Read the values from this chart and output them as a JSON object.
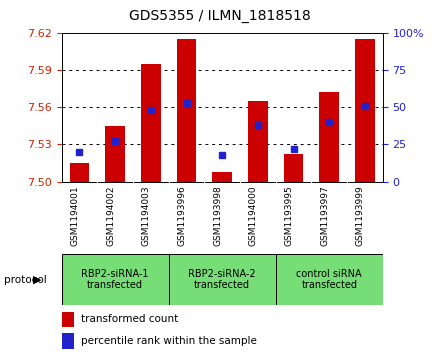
{
  "title": "GDS5355 / ILMN_1818518",
  "samples": [
    "GSM1194001",
    "GSM1194002",
    "GSM1194003",
    "GSM1193996",
    "GSM1193998",
    "GSM1194000",
    "GSM1193995",
    "GSM1193997",
    "GSM1193999"
  ],
  "transformed_counts": [
    7.515,
    7.545,
    7.595,
    7.615,
    7.508,
    7.565,
    7.522,
    7.572,
    7.615
  ],
  "percentile_ranks": [
    20,
    27,
    48,
    53,
    18,
    38,
    22,
    40,
    51
  ],
  "y_min": 7.5,
  "y_max": 7.62,
  "y_ticks": [
    7.5,
    7.53,
    7.56,
    7.59,
    7.62
  ],
  "y2_ticks": [
    0,
    25,
    50,
    75,
    100
  ],
  "bar_color": "#cc0000",
  "marker_color": "#2222cc",
  "plot_bg": "#ffffff",
  "xtick_bg": "#d0d0d0",
  "protocol_groups": [
    {
      "label": "RBP2-siRNA-1\ntransfected",
      "start": 0,
      "end": 3
    },
    {
      "label": "RBP2-siRNA-2\ntransfected",
      "start": 3,
      "end": 6
    },
    {
      "label": "control siRNA\ntransfected",
      "start": 6,
      "end": 9
    }
  ],
  "protocol_bg_color": "#77dd77",
  "legend_red": "transformed count",
  "legend_blue": "percentile rank within the sample",
  "protocol_text": "protocol"
}
